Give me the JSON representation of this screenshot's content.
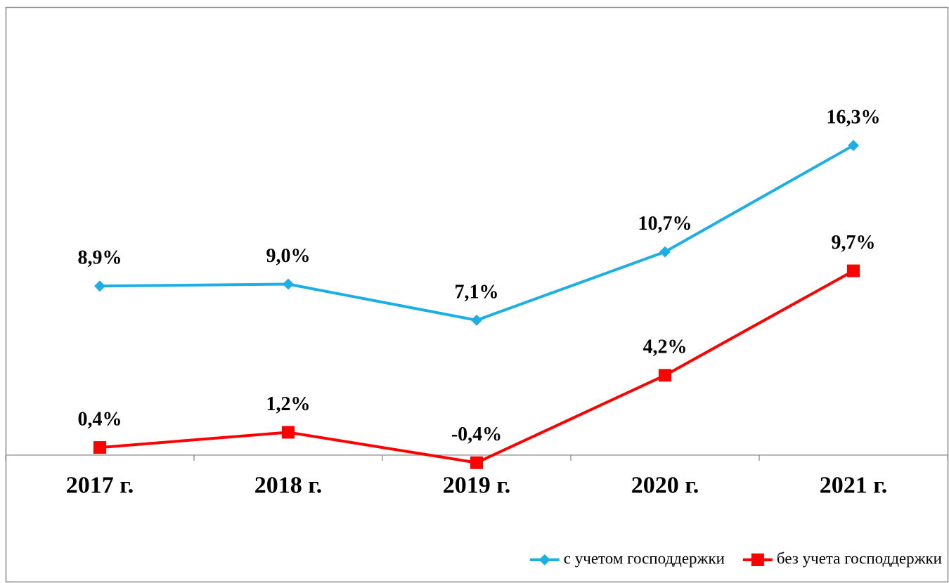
{
  "chart_data": {
    "type": "line",
    "categories": [
      "2017 г.",
      "2018 г.",
      "2019 г.",
      "2020 г.",
      "2021 г."
    ],
    "series": [
      {
        "name": "с учетом господдержки",
        "color": "#1eaee6",
        "marker": "diamond",
        "values": [
          8.9,
          9.0,
          7.1,
          10.7,
          16.3
        ],
        "value_labels": [
          "8,9%",
          "9,0%",
          "7,1%",
          "10,7%",
          "16,3%"
        ]
      },
      {
        "name": "без учета господдержки",
        "color": "#ff0000",
        "marker": "square",
        "values": [
          0.4,
          1.2,
          -0.4,
          4.2,
          9.7
        ],
        "value_labels": [
          "0,4%",
          "1,2%",
          "-0,4%",
          "4,2%",
          "9,7%"
        ]
      }
    ],
    "ylim": [
      -2,
      20
    ],
    "legend": "bottom-right"
  }
}
